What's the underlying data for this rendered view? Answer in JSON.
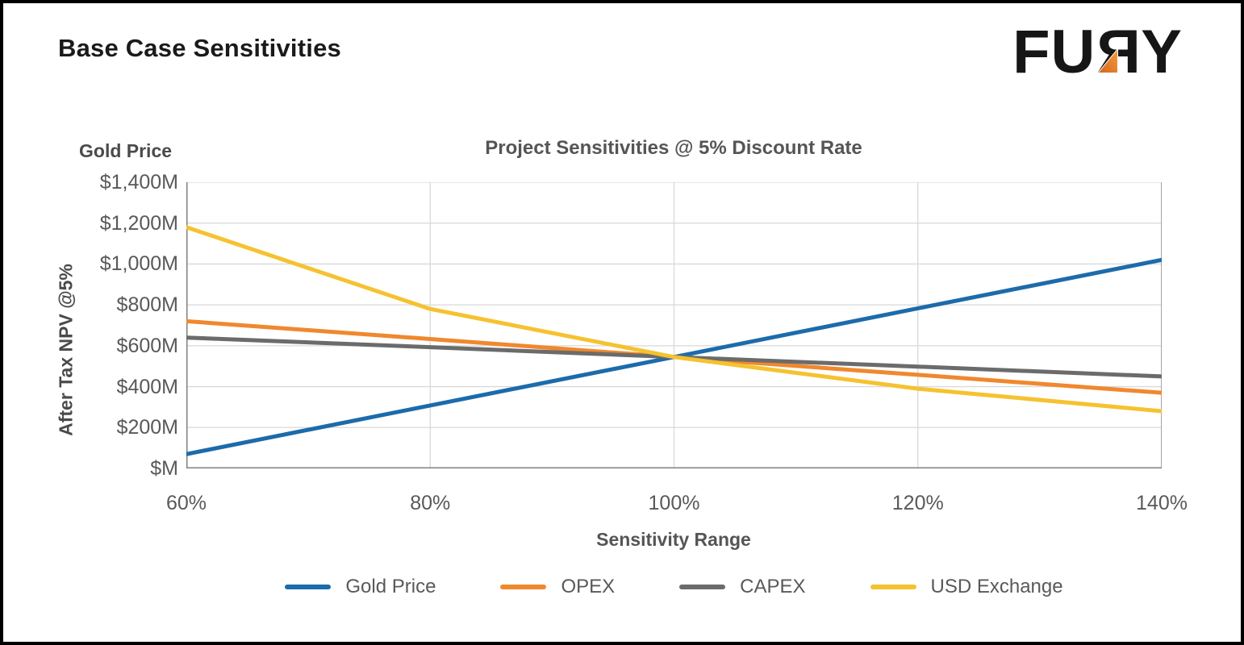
{
  "header": {
    "title": "Base Case Sensitivities",
    "logo": {
      "part1": "FU",
      "part2": "R",
      "part3": "Y",
      "arrow_color_top": "#F59A3C",
      "arrow_color_bottom": "#D4661E"
    }
  },
  "chart_data": {
    "type": "line",
    "title": "Project Sensitivities @ 5% Discount Rate",
    "top_left_label": "Gold Price",
    "xlabel": "Sensitivity Range",
    "ylabel": "After Tax NPV @5%",
    "x_ticks": [
      "60%",
      "80%",
      "100%",
      "120%",
      "140%"
    ],
    "x_values": [
      60,
      80,
      100,
      120,
      140
    ],
    "y_ticks": [
      "$1,400M",
      "$1,200M",
      "$1,000M",
      "$800M",
      "$600M",
      "$400M",
      "$200M",
      "$M"
    ],
    "ylim": [
      0,
      1400
    ],
    "y_tick_step": 200,
    "grid": true,
    "legend_position": "bottom",
    "series": [
      {
        "name": "Gold Price",
        "color": "#1C6BAB",
        "values": [
          70,
          308,
          545,
          783,
          1020
        ]
      },
      {
        "name": "OPEX",
        "color": "#F0882D",
        "values": [
          720,
          633,
          545,
          458,
          370
        ]
      },
      {
        "name": "CAPEX",
        "color": "#6B6B6B",
        "values": [
          640,
          593,
          545,
          498,
          450
        ]
      },
      {
        "name": "USD Exchange",
        "color": "#F5C230",
        "values": [
          1180,
          780,
          545,
          390,
          280
        ]
      }
    ],
    "base_case_npv": 545,
    "discount_rate": "5%"
  }
}
